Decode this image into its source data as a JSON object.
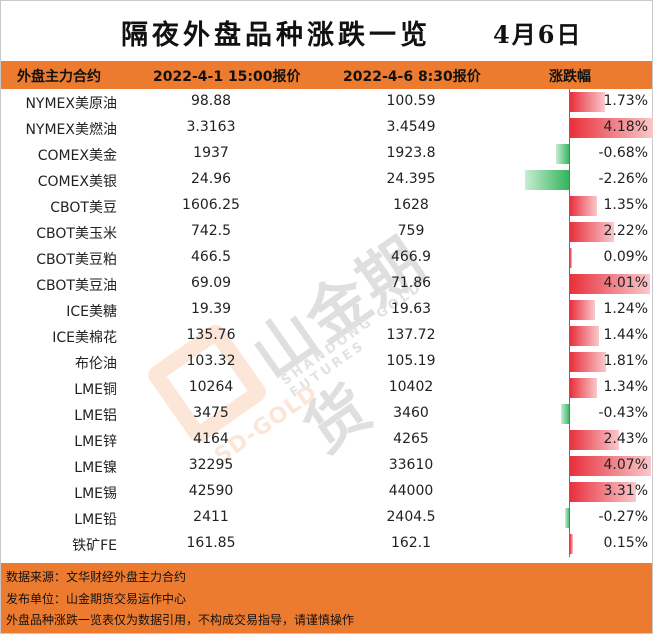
{
  "title": "隔夜外盘品种涨跌一览",
  "date": "4月6日",
  "header": {
    "name": "外盘主力合约",
    "price1": "2022-4-1 15:00报价",
    "price2": "2022-4-6 8:30报价",
    "change": "涨跌幅"
  },
  "rows": [
    {
      "name": "NYMEX美原油",
      "p1": "98.88",
      "p2": "100.59",
      "pct": "1.73%",
      "value": 1.73
    },
    {
      "name": "NYMEX美燃油",
      "p1": "3.3163",
      "p2": "3.4549",
      "pct": "4.18%",
      "value": 4.18
    },
    {
      "name": "COMEX美金",
      "p1": "1937",
      "p2": "1923.8",
      "pct": "-0.68%",
      "value": -0.68
    },
    {
      "name": "COMEX美银",
      "p1": "24.96",
      "p2": "24.395",
      "pct": "-2.26%",
      "value": -2.26
    },
    {
      "name": "CBOT美豆",
      "p1": "1606.25",
      "p2": "1628",
      "pct": "1.35%",
      "value": 1.35
    },
    {
      "name": "CBOT美玉米",
      "p1": "742.5",
      "p2": "759",
      "pct": "2.22%",
      "value": 2.22
    },
    {
      "name": "CBOT美豆粕",
      "p1": "466.5",
      "p2": "466.9",
      "pct": "0.09%",
      "value": 0.09
    },
    {
      "name": "CBOT美豆油",
      "p1": "69.09",
      "p2": "71.86",
      "pct": "4.01%",
      "value": 4.01
    },
    {
      "name": "ICE美糖",
      "p1": "19.39",
      "p2": "19.63",
      "pct": "1.24%",
      "value": 1.24
    },
    {
      "name": "ICE美棉花",
      "p1": "135.76",
      "p2": "137.72",
      "pct": "1.44%",
      "value": 1.44
    },
    {
      "name": "布伦油",
      "p1": "103.32",
      "p2": "105.19",
      "pct": "1.81%",
      "value": 1.81
    },
    {
      "name": "LME铜",
      "p1": "10264",
      "p2": "10402",
      "pct": "1.34%",
      "value": 1.34
    },
    {
      "name": "LME铝",
      "p1": "3475",
      "p2": "3460",
      "pct": "-0.43%",
      "value": -0.43
    },
    {
      "name": "LME锌",
      "p1": "4164",
      "p2": "4265",
      "pct": "2.43%",
      "value": 2.43
    },
    {
      "name": "LME镍",
      "p1": "32295",
      "p2": "33610",
      "pct": "4.07%",
      "value": 4.07
    },
    {
      "name": "LME锡",
      "p1": "42590",
      "p2": "44000",
      "pct": "3.31%",
      "value": 3.31
    },
    {
      "name": "LME铅",
      "p1": "2411",
      "p2": "2404.5",
      "pct": "-0.27%",
      "value": -0.27
    },
    {
      "name": "铁矿FE",
      "p1": "161.85",
      "p2": "162.1",
      "pct": "0.15%",
      "value": 0.15
    }
  ],
  "watermark": {
    "brand_cn": "山金期货",
    "brand_en": "SHANDONG GOLD FUTURES",
    "brand_short": "SD-GOLD"
  },
  "footer": {
    "line1": "数据来源：文华财经外盘主力合约",
    "line2": "发布单位：山金期货交易运作中心",
    "line3": "外盘品种涨跌一览表仅为数据引用，不构成交易指导，请谨慎操作"
  },
  "colors": {
    "accent": "#ED7B2F",
    "positive": "#E8303C",
    "negative": "#2FB35A"
  }
}
